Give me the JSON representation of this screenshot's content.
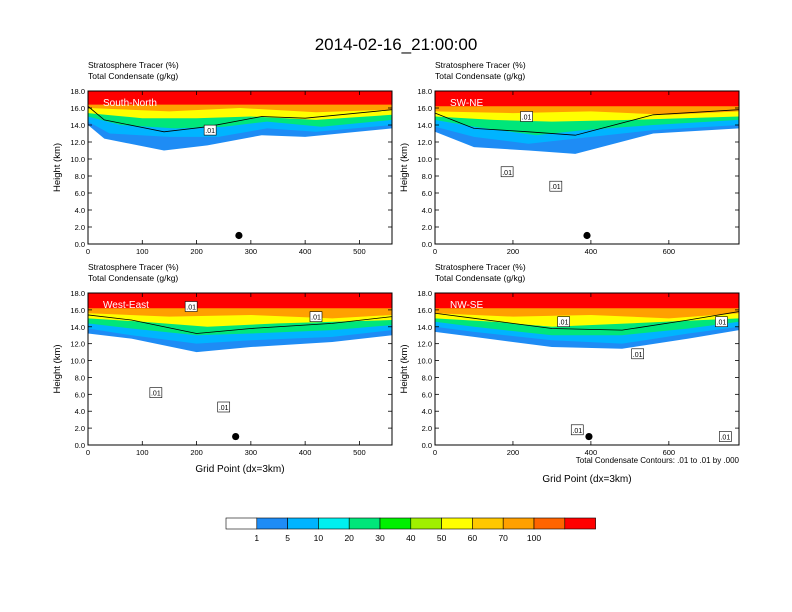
{
  "title": "2014-02-16_21:00:00",
  "footnote": "Total Condensate Contours: .01 to .01 by .000",
  "colors": {
    "scale": [
      "#ffffff",
      "#1e8cf5",
      "#00b4ff",
      "#00f0f0",
      "#00e67a",
      "#00f000",
      "#a0f000",
      "#ffff00",
      "#ffc800",
      "#ffa000",
      "#ff6400",
      "#ff0000"
    ],
    "contour": "#000000",
    "label_text": "#ffffff"
  },
  "colorbar": {
    "levels": [
      "1",
      "5",
      "10",
      "20",
      "30",
      "40",
      "50",
      "60",
      "70",
      "100"
    ]
  },
  "chart_data": [
    {
      "type": "heatmap",
      "panel": "South-North",
      "subtitle1": "Stratosphere Tracer   (%)",
      "subtitle2": "Total Condensate   (g/kg)",
      "ylabel": "Height (km)",
      "xlabel": "",
      "xlim": [
        0,
        560
      ],
      "ylim": [
        0,
        18
      ],
      "xticks": [
        "0",
        "100",
        "200",
        "300",
        "400",
        "500"
      ],
      "xtick_values": [
        0,
        100,
        200,
        300,
        400,
        500
      ],
      "yticks": [
        "0.0",
        "2.0",
        "4.0",
        "6.0",
        "8.0",
        "10.0",
        "12.0",
        "14.0",
        "16.0",
        "18.0"
      ],
      "contour_labels": [
        ".01"
      ],
      "contour_label_positions": [
        [
          225,
          13.4
        ]
      ],
      "marker": {
        "x": 278,
        "y": 1.0
      },
      "bands": {
        "red": [
          [
            0,
            16.4
          ],
          [
            280,
            16.4
          ],
          [
            560,
            16.4
          ]
        ],
        "orange": [
          [
            0,
            16.0
          ],
          [
            150,
            15.6
          ],
          [
            280,
            16.0
          ],
          [
            420,
            15.5
          ],
          [
            560,
            15.8
          ]
        ],
        "yellow": [
          [
            0,
            15.4
          ],
          [
            100,
            14.8
          ],
          [
            200,
            14.8
          ],
          [
            300,
            15.0
          ],
          [
            420,
            14.6
          ],
          [
            560,
            15.2
          ]
        ],
        "green": [
          [
            0,
            15.0
          ],
          [
            60,
            14.0
          ],
          [
            160,
            13.6
          ],
          [
            250,
            13.8
          ],
          [
            330,
            14.4
          ],
          [
            430,
            13.8
          ],
          [
            560,
            14.6
          ]
        ],
        "cyan": [
          [
            0,
            14.4
          ],
          [
            40,
            13.0
          ],
          [
            150,
            12.6
          ],
          [
            240,
            12.6
          ],
          [
            330,
            13.6
          ],
          [
            420,
            13.2
          ],
          [
            560,
            14.0
          ]
        ],
        "blue": [
          [
            0,
            14.0
          ],
          [
            30,
            12.4
          ],
          [
            140,
            11.0
          ],
          [
            220,
            11.6
          ],
          [
            320,
            12.8
          ],
          [
            400,
            12.6
          ],
          [
            560,
            13.6
          ]
        ]
      }
    },
    {
      "type": "heatmap",
      "panel": "SW-NE",
      "subtitle1": "Stratosphere Tracer   (%)",
      "subtitle2": "Total Condensate   (g/kg)",
      "ylabel": "Height (km)",
      "xlabel": "",
      "xlim": [
        0,
        780
      ],
      "ylim": [
        0,
        18
      ],
      "xticks": [
        "0",
        "200",
        "400",
        "600"
      ],
      "xtick_values": [
        0,
        200,
        400,
        600
      ],
      "yticks": [
        "0.0",
        "2.0",
        "4.0",
        "6.0",
        "8.0",
        "10.0",
        "12.0",
        "14.0",
        "16.0",
        "18.0"
      ],
      "contour_labels": [
        ".01",
        ".01",
        ".01"
      ],
      "contour_label_positions": [
        [
          235,
          15.0
        ],
        [
          185,
          8.5
        ],
        [
          310,
          6.8
        ]
      ],
      "marker": {
        "x": 390,
        "y": 1.0
      },
      "bands": {
        "red": [
          [
            0,
            16.2
          ],
          [
            400,
            16.2
          ],
          [
            780,
            16.2
          ]
        ],
        "orange": [
          [
            0,
            15.6
          ],
          [
            200,
            15.4
          ],
          [
            400,
            15.6
          ],
          [
            600,
            15.2
          ],
          [
            780,
            15.6
          ]
        ],
        "yellow": [
          [
            0,
            15.0
          ],
          [
            150,
            14.6
          ],
          [
            300,
            14.4
          ],
          [
            500,
            14.6
          ],
          [
            780,
            15.0
          ]
        ],
        "green": [
          [
            0,
            14.6
          ],
          [
            100,
            13.8
          ],
          [
            260,
            12.8
          ],
          [
            380,
            13.4
          ],
          [
            560,
            14.0
          ],
          [
            780,
            14.6
          ]
        ],
        "cyan": [
          [
            0,
            13.8
          ],
          [
            100,
            12.6
          ],
          [
            240,
            11.8
          ],
          [
            360,
            12.4
          ],
          [
            560,
            13.4
          ],
          [
            780,
            14.0
          ]
        ],
        "blue": [
          [
            0,
            13.2
          ],
          [
            100,
            11.4
          ],
          [
            240,
            11.0
          ],
          [
            360,
            10.6
          ],
          [
            560,
            13.0
          ],
          [
            780,
            13.6
          ]
        ]
      }
    },
    {
      "type": "heatmap",
      "panel": "West-East",
      "subtitle1": "Stratosphere Tracer   (%)",
      "subtitle2": "Total Condensate   (g/kg)",
      "ylabel": "Height (km)",
      "xlabel": "Grid Point (dx=3km)",
      "xlim": [
        0,
        560
      ],
      "ylim": [
        0,
        18
      ],
      "xticks": [
        "0",
        "100",
        "200",
        "300",
        "400",
        "500"
      ],
      "xtick_values": [
        0,
        100,
        200,
        300,
        400,
        500
      ],
      "yticks": [
        "0.0",
        "2.0",
        "4.0",
        "6.0",
        "8.0",
        "10.0",
        "12.0",
        "14.0",
        "16.0",
        "18.0"
      ],
      "contour_labels": [
        ".01",
        ".01",
        ".01",
        ".01"
      ],
      "contour_label_positions": [
        [
          190,
          16.4
        ],
        [
          420,
          15.2
        ],
        [
          125,
          6.2
        ],
        [
          250,
          4.5
        ]
      ],
      "marker": {
        "x": 272,
        "y": 1.0
      },
      "bands": {
        "red": [
          [
            0,
            16.2
          ],
          [
            280,
            16.2
          ],
          [
            560,
            16.2
          ]
        ],
        "orange": [
          [
            0,
            15.6
          ],
          [
            150,
            15.2
          ],
          [
            300,
            15.4
          ],
          [
            450,
            15.0
          ],
          [
            560,
            15.4
          ]
        ],
        "yellow": [
          [
            0,
            15.0
          ],
          [
            100,
            14.6
          ],
          [
            220,
            14.0
          ],
          [
            350,
            14.4
          ],
          [
            560,
            14.8
          ]
        ],
        "green": [
          [
            0,
            14.4
          ],
          [
            80,
            13.8
          ],
          [
            200,
            13.0
          ],
          [
            300,
            13.2
          ],
          [
            450,
            13.6
          ],
          [
            560,
            14.2
          ]
        ],
        "cyan": [
          [
            0,
            13.8
          ],
          [
            80,
            13.0
          ],
          [
            200,
            12.0
          ],
          [
            300,
            12.4
          ],
          [
            450,
            12.8
          ],
          [
            560,
            13.6
          ]
        ],
        "blue": [
          [
            0,
            13.2
          ],
          [
            80,
            12.6
          ],
          [
            200,
            11.0
          ],
          [
            300,
            11.6
          ],
          [
            450,
            12.2
          ],
          [
            560,
            13.0
          ]
        ]
      }
    },
    {
      "type": "heatmap",
      "panel": "NW-SE",
      "subtitle1": "Stratosphere Tracer   (%)",
      "subtitle2": "Total Condensate   (g/kg)",
      "ylabel": "Height (km)",
      "xlabel": "Grid Point (dx=3km)",
      "xlim": [
        0,
        780
      ],
      "ylim": [
        0,
        18
      ],
      "xticks": [
        "0",
        "200",
        "400",
        "600"
      ],
      "xtick_values": [
        0,
        200,
        400,
        600
      ],
      "yticks": [
        "0.0",
        "2.0",
        "4.0",
        "6.0",
        "8.0",
        "10.0",
        "12.0",
        "14.0",
        "16.0",
        "18.0"
      ],
      "contour_labels": [
        ".01",
        ".01",
        ".01",
        ".01",
        ".01"
      ],
      "contour_label_positions": [
        [
          330,
          14.6
        ],
        [
          735,
          14.6
        ],
        [
          520,
          10.8
        ],
        [
          365,
          1.8
        ],
        [
          745,
          1.0
        ]
      ],
      "marker": {
        "x": 395,
        "y": 1.0
      },
      "bands": {
        "red": [
          [
            0,
            16.2
          ],
          [
            400,
            16.2
          ],
          [
            780,
            16.2
          ]
        ],
        "orange": [
          [
            0,
            15.6
          ],
          [
            200,
            15.2
          ],
          [
            400,
            15.4
          ],
          [
            600,
            15.0
          ],
          [
            780,
            15.6
          ]
        ],
        "yellow": [
          [
            0,
            15.0
          ],
          [
            150,
            14.6
          ],
          [
            300,
            14.0
          ],
          [
            500,
            14.4
          ],
          [
            780,
            15.0
          ]
        ],
        "green": [
          [
            0,
            14.6
          ],
          [
            100,
            14.0
          ],
          [
            300,
            13.0
          ],
          [
            480,
            13.0
          ],
          [
            650,
            13.8
          ],
          [
            780,
            14.6
          ]
        ],
        "cyan": [
          [
            0,
            14.0
          ],
          [
            100,
            13.4
          ],
          [
            300,
            12.4
          ],
          [
            480,
            12.0
          ],
          [
            650,
            13.2
          ],
          [
            780,
            14.0
          ]
        ],
        "blue": [
          [
            0,
            13.4
          ],
          [
            100,
            12.8
          ],
          [
            300,
            11.6
          ],
          [
            480,
            11.4
          ],
          [
            650,
            12.6
          ],
          [
            780,
            13.6
          ]
        ]
      }
    }
  ]
}
